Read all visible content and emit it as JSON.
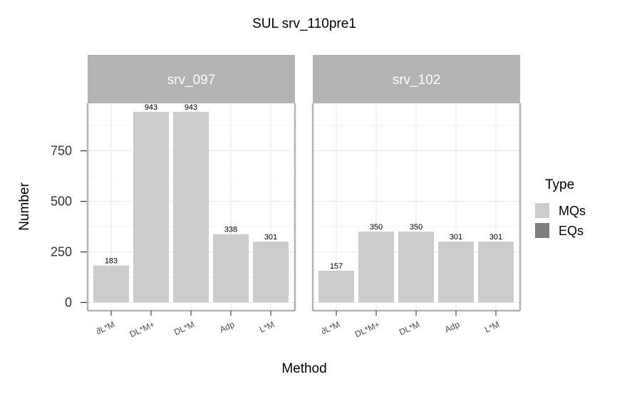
{
  "chart_data": {
    "type": "bar",
    "title": "SUL  srv_110pre1",
    "xlabel": "Method",
    "ylabel": "Number",
    "ylim": [
      0,
      990
    ],
    "yticks": [
      0,
      250,
      500,
      750
    ],
    "ytick_labels": [
      "0",
      "250",
      "500",
      "750"
    ],
    "categories": [
      "∂L*M",
      "DL*M+",
      "DL*M",
      "Adp",
      "L*M"
    ],
    "legend": {
      "title": "Type",
      "position": "right",
      "entries": [
        {
          "label": "MQs",
          "color": "#cccccc"
        },
        {
          "label": "EQs",
          "color": "#7f7f7f"
        }
      ]
    },
    "panels": [
      {
        "name": "srv_097",
        "series": [
          {
            "name": "MQs",
            "values": [
              183,
              943,
              943,
              338,
              301
            ]
          }
        ],
        "labels": [
          "183",
          "943",
          "943",
          "338",
          "301"
        ]
      },
      {
        "name": "srv_102",
        "series": [
          {
            "name": "MQs",
            "values": [
              157,
              350,
              350,
              301,
              301
            ]
          }
        ],
        "labels": [
          "157",
          "350",
          "350",
          "301",
          "301"
        ]
      }
    ],
    "grid": true
  }
}
